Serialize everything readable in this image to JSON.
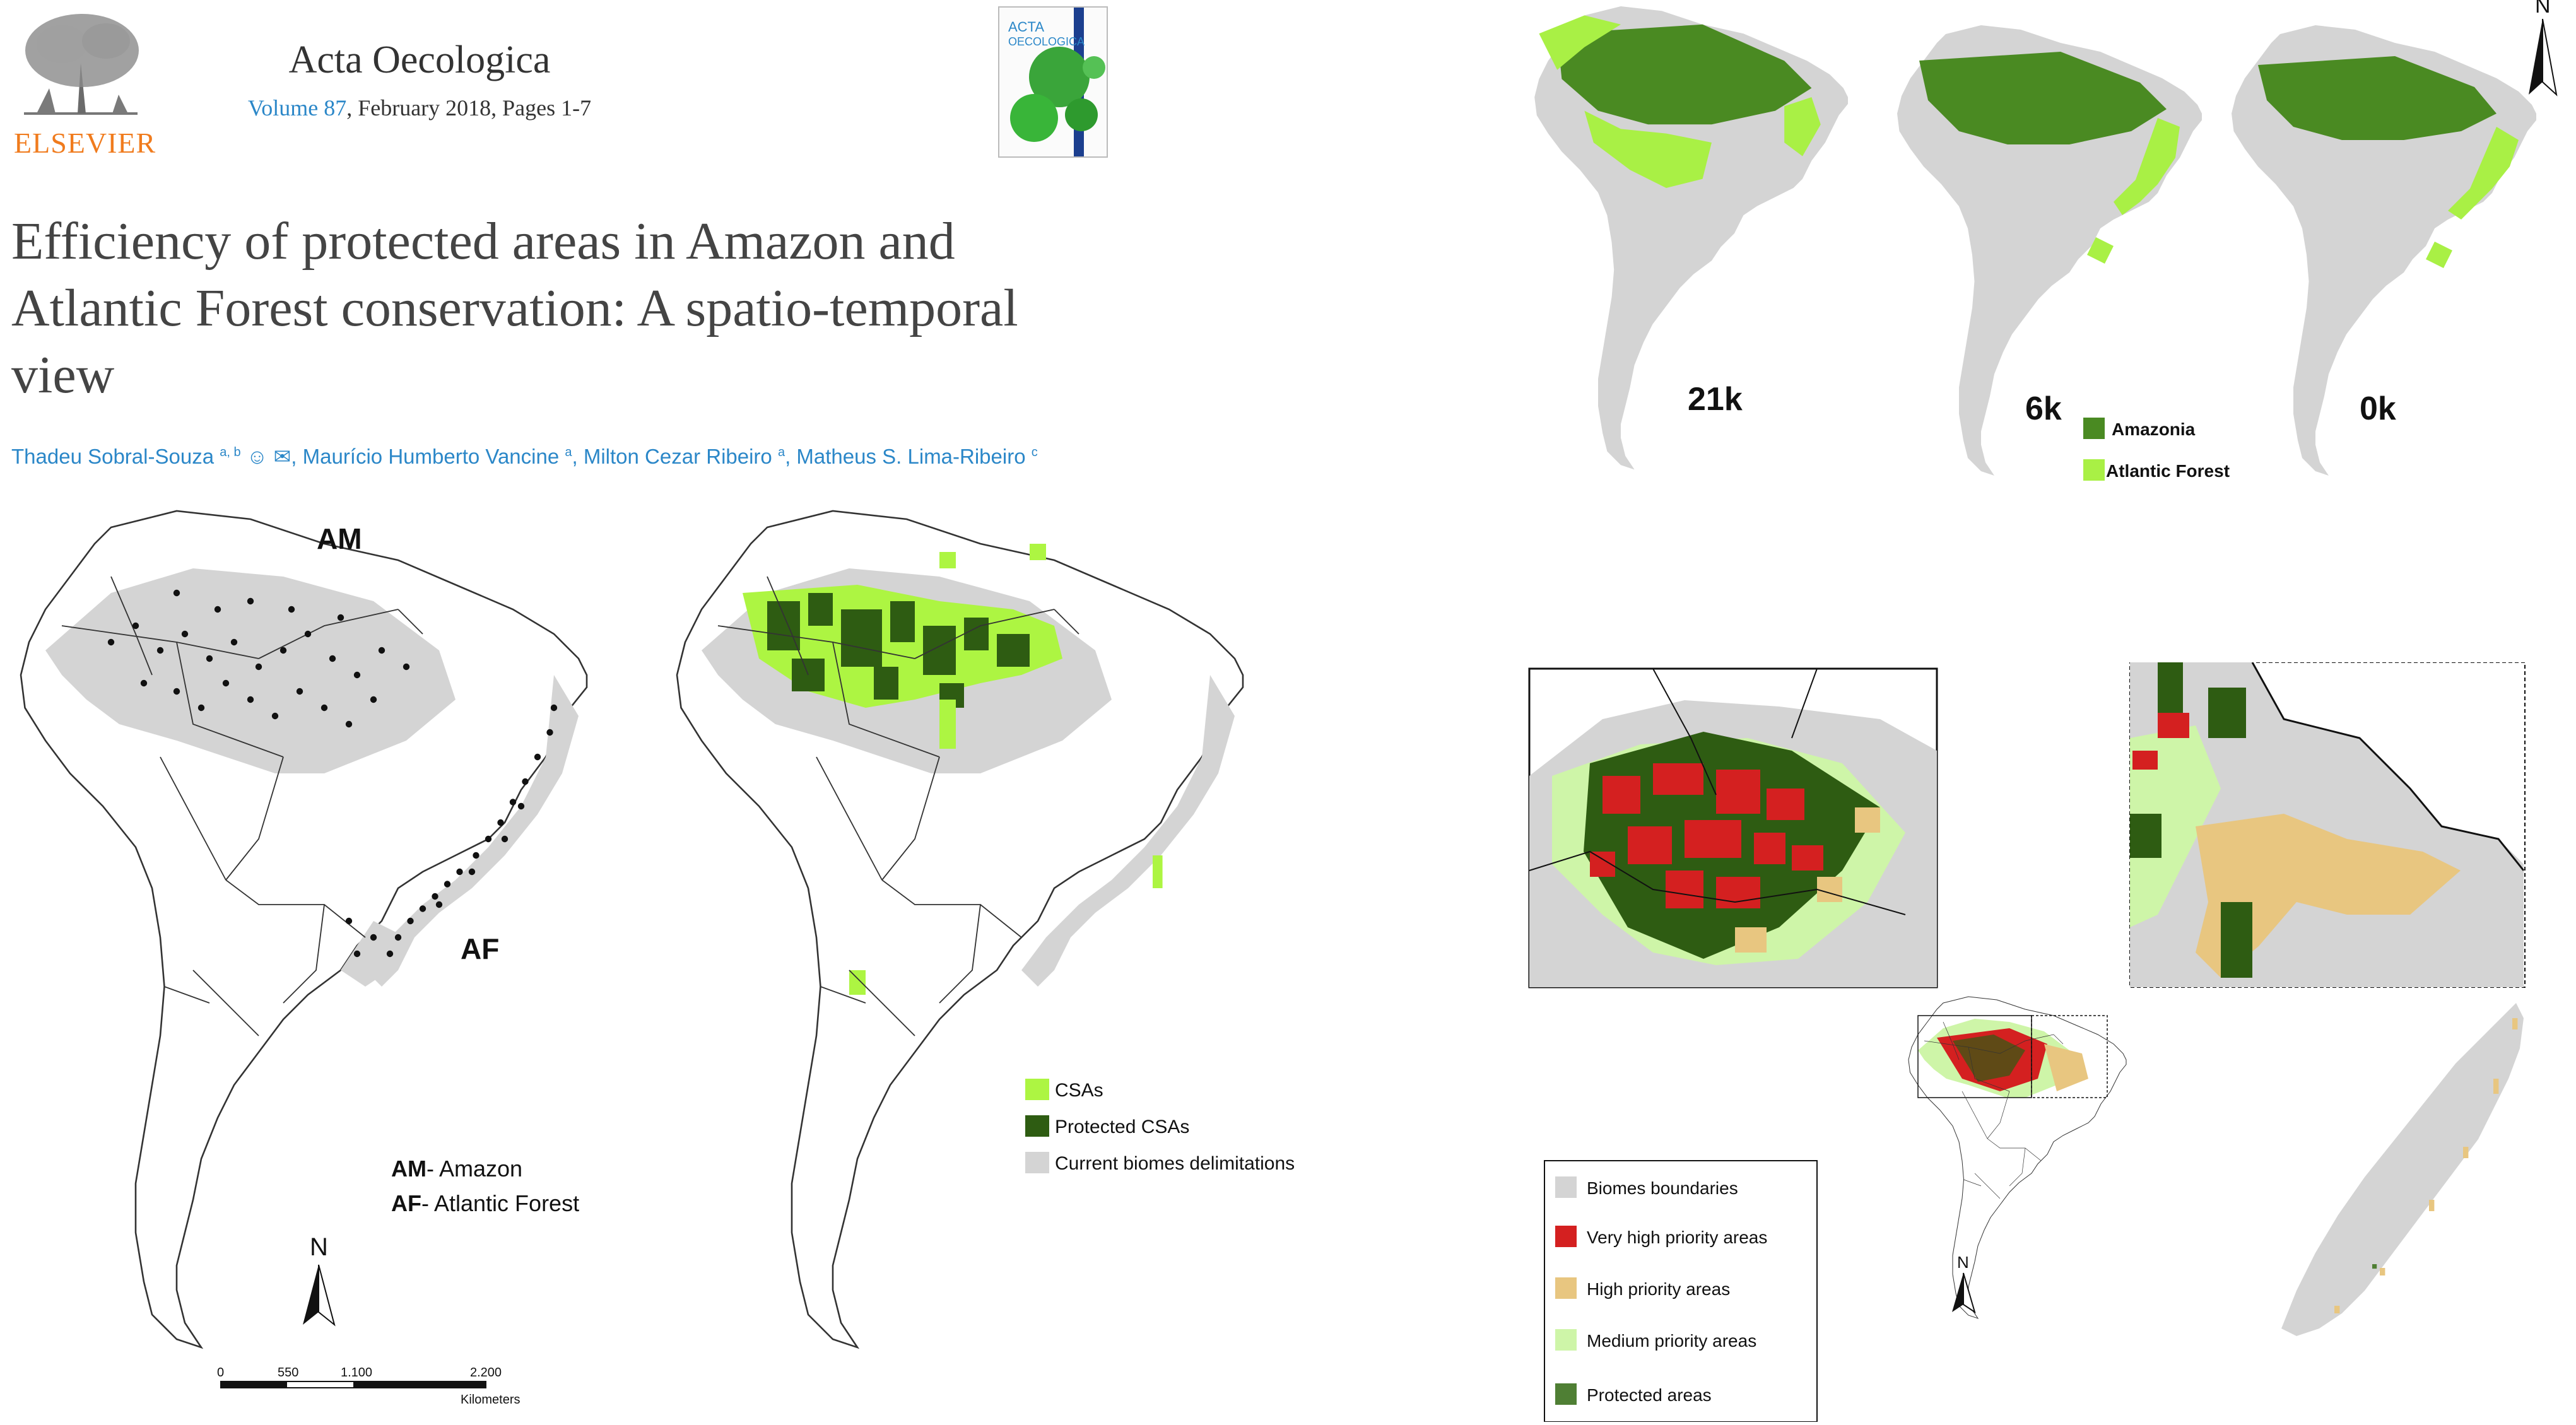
{
  "header": {
    "publisher": "ELSEVIER",
    "journal": "Acta Oecologica",
    "volume_link": "Volume 87",
    "volume_rest": ", February 2018, Pages 1-7",
    "cover_title_line1": "ACTA",
    "cover_title_line2": "OECOLOGICA"
  },
  "article": {
    "title_line1": "Efficiency of protected areas in Amazon and",
    "title_line2": "Atlantic Forest conservation: A spatio-temporal",
    "title_line3": "view",
    "authors": [
      {
        "name": "Thadeu Sobral-Souza",
        "sup": "a, b"
      },
      {
        "name": "Maurício Humberto Vancine",
        "sup": "a"
      },
      {
        "name": "Milton Cezar Ribeiro",
        "sup": "a"
      },
      {
        "name": "Matheus S. Lima-Ribeiro",
        "sup": "c"
      }
    ]
  },
  "figure_points": {
    "label_am": "AM",
    "label_af": "AF",
    "legend_am_abbr": "AM",
    "legend_am_text": "- Amazon",
    "legend_af_abbr": "AF",
    "legend_af_text": "- Atlantic Forest",
    "north": "N",
    "scale_ticks": [
      "0",
      "550",
      "1.100",
      "2.200"
    ],
    "scale_unit": "Kilometers"
  },
  "figure_csa": {
    "legend": [
      {
        "label": "CSAs",
        "color": "#adf542"
      },
      {
        "label": "Protected CSAs",
        "color": "#2e5c12"
      },
      {
        "label": "Current biomes delimitations",
        "color": "#d4d4d4"
      }
    ]
  },
  "figure_time": {
    "periods": [
      "21k",
      "6k",
      "0k"
    ],
    "legend": [
      {
        "label": "Amazonia",
        "color": "#4a8a22"
      },
      {
        "label": "Atlantic Forest",
        "color": "#a9f045"
      }
    ],
    "north": "N"
  },
  "figure_priority": {
    "legend": [
      {
        "label": "Biomes boundaries",
        "color": "#d4d4d4"
      },
      {
        "label": "Very high priority areas",
        "color": "#d42020"
      },
      {
        "label": "High priority areas",
        "color": "#e8c680"
      },
      {
        "label": "Medium priority areas",
        "color": "#cef5a8"
      },
      {
        "label": "Protected areas",
        "color": "#4f7f34"
      }
    ],
    "north": "N"
  },
  "colors": {
    "biome_gray": "#d4d4d4",
    "link_blue": "#2b87c8",
    "publisher_orange": "#f07b1d"
  }
}
